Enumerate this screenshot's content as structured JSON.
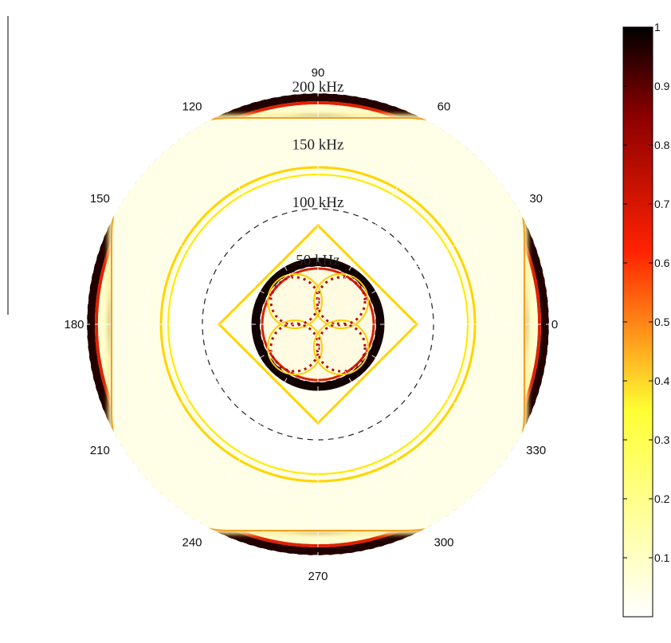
{
  "chart_data": {
    "type": "heatmap",
    "subtype": "polar",
    "title": "",
    "angle_ticks": [
      "0",
      "30",
      "60",
      "90",
      "120",
      "150",
      "180",
      "210",
      "240",
      "270",
      "300",
      "330"
    ],
    "radial_rings": [
      {
        "label": "50 kHz",
        "value": 50
      },
      {
        "label": "100 kHz",
        "value": 100
      },
      {
        "label": "150 kHz",
        "value": 150
      },
      {
        "label": "200 kHz",
        "value": 200
      }
    ],
    "r_max": 200,
    "colormap": "hot (reversed)",
    "colormap_stops": [
      {
        "v": 0.0,
        "color": "#ffffff"
      },
      {
        "v": 0.35,
        "color": "#ffff33"
      },
      {
        "v": 0.62,
        "color": "#ff2200"
      },
      {
        "v": 0.85,
        "color": "#8b0000"
      },
      {
        "v": 1.0,
        "color": "#000000"
      }
    ],
    "colorbar": {
      "ticks": [
        "0.1",
        "0.2",
        "0.3",
        "0.4",
        "0.5",
        "0.6",
        "0.7",
        "0.8",
        "0.9",
        "1"
      ],
      "range": [
        0,
        1
      ]
    },
    "grid": "dashed white spokes every 30 degrees; dashed circles at ring values",
    "intensity_features": [
      {
        "name": "inner-dark-ring",
        "r_kHz": [
          35,
          41
        ],
        "level": 1.0
      },
      {
        "name": "inner-petals",
        "r_kHz": [
          0,
          33
        ],
        "level": 0.6
      },
      {
        "name": "first-diamond",
        "r_kHz": 58,
        "level": 0.4
      },
      {
        "name": "yellow-rings",
        "r_kHz": [
          108,
          112
        ],
        "level": 0.35
      },
      {
        "name": "outer-square-boundary",
        "r_kHz": 152,
        "level": 0.4
      },
      {
        "name": "dark-band",
        "r_kHz": [
          166,
          185
        ],
        "level": 1.0
      },
      {
        "name": "outer-rim",
        "r_kHz": [
          196,
          200
        ],
        "level": 0.9
      }
    ]
  }
}
